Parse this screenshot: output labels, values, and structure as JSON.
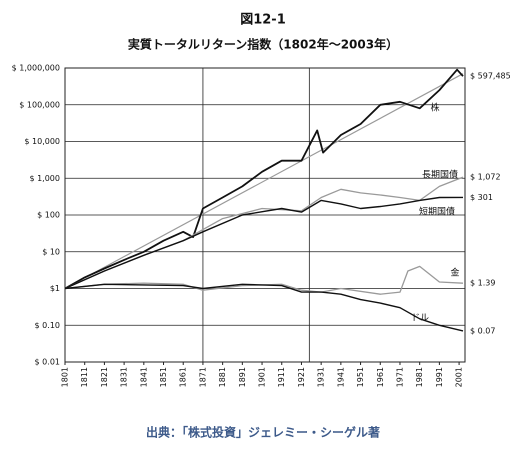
{
  "chart_data": {
    "type": "line",
    "title": "図12-1",
    "subtitle": "実質トータルリターン指数（1802年～2003年）",
    "source": "出典：「株式投資」ジェレミー・シーゲル著",
    "log_scale": true,
    "xlim": [
      1801,
      2004
    ],
    "xticks": [
      1801,
      1811,
      1821,
      1831,
      1841,
      1851,
      1861,
      1871,
      1881,
      1891,
      1901,
      1911,
      1921,
      1931,
      1941,
      1951,
      1961,
      1971,
      1981,
      1991,
      2001
    ],
    "ylim": [
      0.01,
      1000000
    ],
    "yticks": [
      {
        "value": 0.01,
        "label": "$ 0.01"
      },
      {
        "value": 0.1,
        "label": "$ 0.10"
      },
      {
        "value": 1,
        "label": "$1"
      },
      {
        "value": 10,
        "label": "$ 10"
      },
      {
        "value": 100,
        "label": "$ 100"
      },
      {
        "value": 1000,
        "label": "$ 1,000"
      },
      {
        "value": 10000,
        "label": "$ 10,000"
      },
      {
        "value": 100000,
        "label": "$ 100,000"
      },
      {
        "value": 1000000,
        "label": "$ 1,000,000"
      }
    ],
    "xlines": [
      1871,
      1925
    ],
    "trend": {
      "color": "#9a9a9a",
      "x": [
        1801,
        2003
      ],
      "values": [
        1,
        700000
      ]
    },
    "series": [
      {
        "name": "株",
        "color": "#111111",
        "width": 1.8,
        "x": [
          1801,
          1811,
          1821,
          1831,
          1841,
          1851,
          1861,
          1866,
          1871,
          1881,
          1891,
          1901,
          1911,
          1921,
          1929,
          1932,
          1941,
          1951,
          1961,
          1971,
          1981,
          1991,
          2000,
          2003
        ],
        "values": [
          1,
          2,
          3.5,
          6,
          10,
          20,
          35,
          25,
          150,
          300,
          600,
          1500,
          3000,
          3000,
          20000,
          5000,
          15000,
          30000,
          100000,
          120000,
          80000,
          250000,
          900000,
          597485
        ],
        "value_labels": [
          null,
          null,
          null,
          null,
          null,
          null,
          null,
          null,
          null,
          null,
          null,
          null,
          null,
          null,
          null,
          null,
          null,
          null,
          null,
          null,
          null,
          null,
          null,
          "$ 597,485"
        ]
      },
      {
        "name": "長期国債",
        "color": "#9a9a9a",
        "width": 1.3,
        "x": [
          1801,
          1821,
          1841,
          1861,
          1871,
          1881,
          1901,
          1921,
          1931,
          1941,
          1951,
          1961,
          1971,
          1981,
          1991,
          2003
        ],
        "values": [
          1,
          3,
          8,
          20,
          40,
          80,
          150,
          130,
          300,
          500,
          400,
          350,
          300,
          250,
          600,
          1072
        ],
        "value_labels": [
          null,
          null,
          null,
          null,
          null,
          null,
          null,
          null,
          null,
          null,
          null,
          null,
          null,
          null,
          null,
          "$ 1,072"
        ]
      },
      {
        "name": "短期国債",
        "color": "#111111",
        "width": 1.4,
        "x": [
          1801,
          1821,
          1841,
          1861,
          1871,
          1891,
          1911,
          1921,
          1931,
          1941,
          1951,
          1961,
          1971,
          1981,
          1991,
          2003
        ],
        "values": [
          1,
          3,
          8,
          20,
          35,
          100,
          150,
          120,
          250,
          200,
          150,
          170,
          200,
          250,
          300,
          301
        ],
        "value_labels": [
          null,
          null,
          null,
          null,
          null,
          null,
          null,
          null,
          null,
          null,
          null,
          null,
          null,
          null,
          null,
          "$ 301"
        ]
      },
      {
        "name": "金",
        "color": "#9a9a9a",
        "width": 1.3,
        "x": [
          1801,
          1821,
          1841,
          1861,
          1871,
          1891,
          1911,
          1921,
          1931,
          1941,
          1961,
          1971,
          1975,
          1981,
          1991,
          2003
        ],
        "values": [
          1,
          1.3,
          1.4,
          1.3,
          0.9,
          1.2,
          1.3,
          0.9,
          0.8,
          1,
          0.7,
          0.8,
          3,
          4,
          1.5,
          1.39
        ],
        "value_labels": [
          null,
          null,
          null,
          null,
          null,
          null,
          null,
          null,
          null,
          null,
          null,
          null,
          null,
          null,
          null,
          "$ 1.39"
        ]
      },
      {
        "name": "ドル",
        "color": "#111111",
        "width": 1.4,
        "x": [
          1801,
          1821,
          1861,
          1871,
          1891,
          1911,
          1921,
          1931,
          1941,
          1951,
          1961,
          1971,
          1981,
          1991,
          2003
        ],
        "values": [
          1,
          1.3,
          1.2,
          1,
          1.3,
          1.2,
          0.8,
          0.8,
          0.7,
          0.5,
          0.4,
          0.3,
          0.15,
          0.1,
          0.07
        ],
        "value_labels": [
          null,
          null,
          null,
          null,
          null,
          null,
          null,
          null,
          null,
          null,
          null,
          null,
          null,
          null,
          "$ 0.07"
        ]
      }
    ]
  }
}
